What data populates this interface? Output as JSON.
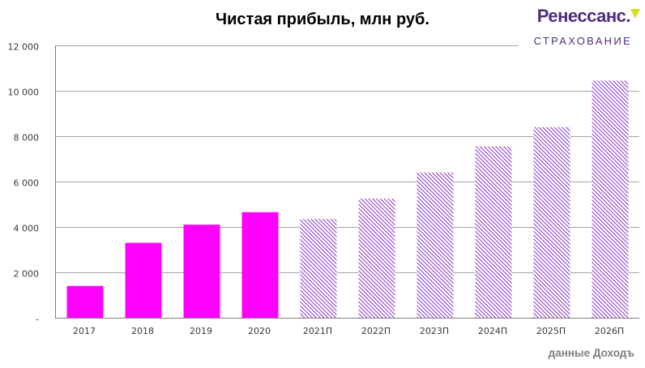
{
  "title": "Чистая прибыль, млн руб.",
  "logo": {
    "brand": "Ренессанс.",
    "sub": "СТРАХОВАНИЕ"
  },
  "footer": "данные Доходъ",
  "colors": {
    "solid_bar": "#ff00ff",
    "hatch_bar": "#8833cc",
    "gridline": "#a6a6a6",
    "axis": "#808080",
    "logo_purple": "#4f2d7f",
    "logo_triangle": "#d7df23",
    "footer_gray": "#7f7f7f"
  },
  "chart_data": {
    "type": "bar",
    "title": "Чистая прибыль, млн руб.",
    "categories": [
      "2017",
      "2018",
      "2019",
      "2020",
      "2021П",
      "2022П",
      "2023П",
      "2024П",
      "2025П",
      "2026П"
    ],
    "values": [
      1400,
      3300,
      4100,
      4650,
      4350,
      5250,
      6400,
      7550,
      8400,
      10450
    ],
    "bar_styles": [
      "solid",
      "solid",
      "solid",
      "solid",
      "hatch",
      "hatch",
      "hatch",
      "hatch",
      "hatch",
      "hatch"
    ],
    "ylim": [
      0,
      12000
    ],
    "ytick_step": 2000,
    "ytick_labels": [
      "-",
      "2 000",
      "4 000",
      "6 000",
      "8 000",
      "10 000",
      "12 000"
    ],
    "grid": true,
    "legend": "none"
  }
}
